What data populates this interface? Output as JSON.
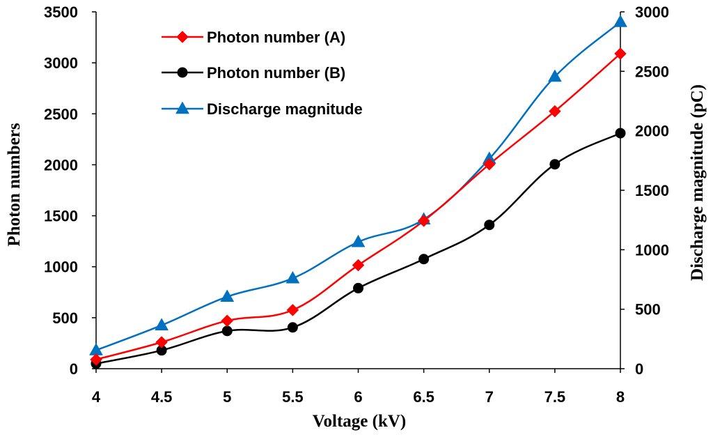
{
  "chart_data": {
    "type": "line",
    "title": "",
    "x": [
      4,
      4.5,
      5,
      5.5,
      6,
      6.5,
      7,
      7.5,
      8
    ],
    "x_tick_labels": [
      "4",
      "4.5",
      "5",
      "5.5",
      "6",
      "6.5",
      "7",
      "7.5",
      "8"
    ],
    "xlabel": "Voltage (kV)",
    "ylabel": "Photon numbers",
    "ylabel_right": "Discharge magnitude (pC)",
    "ylim": [
      0,
      3500
    ],
    "ylim_right": [
      0,
      3000
    ],
    "y_ticks": [
      0,
      500,
      1000,
      1500,
      2000,
      2500,
      3000,
      3500
    ],
    "y_tick_labels": [
      "0",
      "500",
      "1000",
      "1500",
      "2000",
      "2500",
      "3000",
      "3500"
    ],
    "y_ticks_right": [
      0,
      500,
      1000,
      1500,
      2000,
      2500,
      3000
    ],
    "y_tick_labels_right": [
      "0",
      "500",
      "1000",
      "1500",
      "2000",
      "2500",
      "3000"
    ],
    "grid": false,
    "legend_position": "top-left",
    "series": [
      {
        "name": "Photon number (A)",
        "axis": "left",
        "marker": "diamond",
        "color": "#ff0000",
        "values": [
          90,
          260,
          470,
          575,
          1015,
          1450,
          2005,
          2525,
          3090
        ]
      },
      {
        "name": "Photon number (B)",
        "axis": "left",
        "marker": "circle",
        "color": "#000000",
        "values": [
          50,
          180,
          370,
          405,
          790,
          1075,
          1410,
          2005,
          2310
        ]
      },
      {
        "name": "Discharge magnitude",
        "axis": "right",
        "marker": "triangle",
        "color": "#0070c0",
        "values": [
          155,
          365,
          605,
          760,
          1065,
          1255,
          1765,
          2455,
          2915
        ]
      }
    ]
  }
}
